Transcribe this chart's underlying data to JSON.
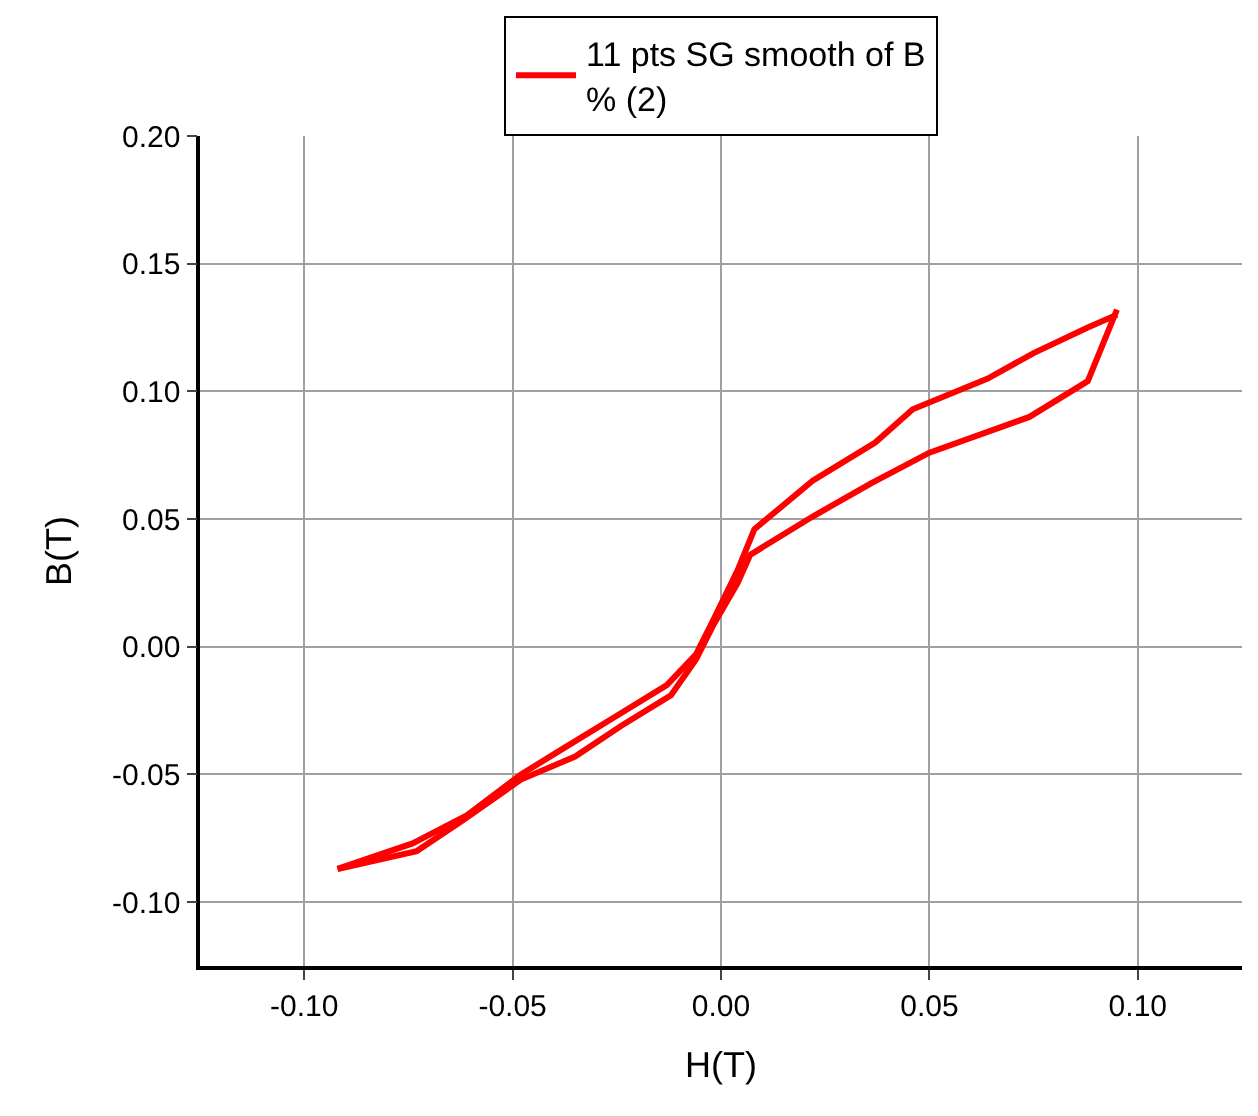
{
  "chart_data": {
    "type": "line",
    "xlabel": "H(T)",
    "ylabel": "B(T)",
    "series": [
      {
        "name": "11 pts SG smooth of B % (2)",
        "color": "#ff0000",
        "x": [
          -0.092,
          -0.073,
          -0.062,
          -0.048,
          -0.035,
          -0.024,
          -0.012,
          -0.006,
          -0.002,
          0.004,
          0.007,
          0.022,
          0.036,
          0.05,
          0.074,
          0.088,
          0.095
        ],
        "values": [
          -0.087,
          -0.08,
          -0.068,
          -0.052,
          -0.043,
          -0.031,
          -0.019,
          -0.005,
          0.008,
          0.025,
          0.036,
          0.051,
          0.064,
          0.076,
          0.09,
          0.104,
          0.132
        ]
      },
      {
        "color": "#ff0000",
        "x": [
          0.095,
          0.088,
          0.075,
          0.064,
          0.046,
          0.037,
          0.022,
          0.008,
          0.004,
          -0.002,
          -0.006,
          -0.013,
          -0.025,
          -0.038,
          -0.048,
          -0.061,
          -0.074,
          -0.092
        ],
        "values": [
          0.13,
          0.125,
          0.115,
          0.105,
          0.093,
          0.08,
          0.065,
          0.046,
          0.03,
          0.01,
          -0.003,
          -0.015,
          -0.027,
          -0.04,
          -0.05,
          -0.066,
          -0.077,
          -0.087
        ]
      }
    ],
    "xlim": [
      -0.125,
      0.125
    ],
    "xticks": [
      {
        "value": -0.1,
        "label": "-0.10"
      },
      {
        "value": -0.05,
        "label": "-0.05"
      },
      {
        "value": 0,
        "label": "0.00"
      },
      {
        "value": 0.05,
        "label": "0.05"
      },
      {
        "value": 0.1,
        "label": "0.10"
      }
    ],
    "ylim": [
      -0.125,
      0.2
    ],
    "yticks": [
      {
        "value": -0.1,
        "label": "-0.10"
      },
      {
        "value": -0.05,
        "label": "-0.05"
      },
      {
        "value": 0,
        "label": "0.00"
      },
      {
        "value": 0.05,
        "label": "0.05"
      },
      {
        "value": 0.1,
        "label": "0.10"
      },
      {
        "value": 0.15,
        "label": "0.15"
      },
      {
        "value": 0.2,
        "label": "0.20"
      }
    ],
    "grid": true,
    "legend": "top",
    "marker": "none",
    "line_style": "solid"
  }
}
